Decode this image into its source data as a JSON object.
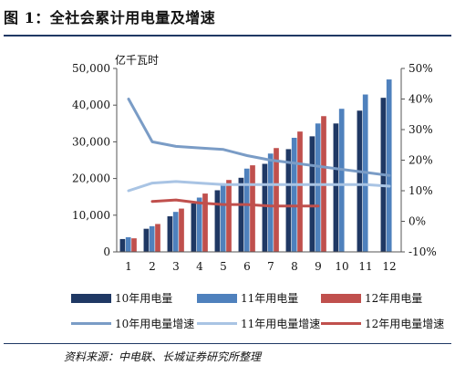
{
  "title": "图 1：全社会累计用电量及增速",
  "source": "资料来源：中电联、长城证券研究所整理",
  "colors": {
    "bar10": "#1f3864",
    "bar11": "#4f81bd",
    "bar12": "#c0504d",
    "line10": "#7a9cc6",
    "line11": "#a9c4e4",
    "line12": "#c0504d"
  },
  "chart_data": {
    "type": "bar",
    "title": "图 1：全社会累计用电量及增速",
    "ylabel": "亿千瓦时",
    "categories": [
      "1",
      "2",
      "3",
      "4",
      "5",
      "6",
      "7",
      "8",
      "9",
      "10",
      "11",
      "12"
    ],
    "y_left": {
      "ylim": [
        0,
        50000
      ],
      "ticks": [
        "0",
        "10,000",
        "20,000",
        "30,000",
        "40,000",
        "50,000"
      ],
      "tick_values": [
        0,
        10000,
        20000,
        30000,
        40000,
        50000
      ]
    },
    "y_right": {
      "ylim": [
        -10,
        50
      ],
      "ticks": [
        "-10%",
        "0%",
        "10%",
        "20%",
        "30%",
        "40%",
        "50%"
      ],
      "tick_values": [
        -10,
        0,
        10,
        20,
        30,
        40,
        50
      ]
    },
    "bar_series": [
      {
        "name": "10年用电量",
        "color": "#1f3864",
        "values": [
          3500,
          6300,
          9700,
          13200,
          16800,
          20200,
          24000,
          28000,
          31500,
          35000,
          38500,
          42000
        ]
      },
      {
        "name": "11年用电量",
        "color": "#4f81bd",
        "values": [
          4000,
          7000,
          10900,
          14800,
          18700,
          22700,
          26800,
          31100,
          35000,
          39000,
          42900,
          47000
        ]
      },
      {
        "name": "12年用电量",
        "color": "#c0504d",
        "values": [
          3700,
          7600,
          11800,
          15900,
          19600,
          23600,
          28300,
          32800,
          37000,
          null,
          null,
          null
        ]
      }
    ],
    "line_series": [
      {
        "name": "10年用电量增速",
        "color": "#7a9cc6",
        "values": [
          40,
          26,
          24.5,
          24,
          23.5,
          21.5,
          20,
          19,
          18,
          17,
          16,
          15
        ]
      },
      {
        "name": "11年用电量增速",
        "color": "#a9c4e4",
        "values": [
          10,
          12.5,
          13,
          12.5,
          12,
          12,
          12,
          12,
          12,
          12,
          12,
          11.5
        ]
      },
      {
        "name": "12年用电量增速",
        "color": "#c0504d",
        "values": [
          null,
          6.5,
          7,
          6,
          5.5,
          5.5,
          5,
          5,
          5,
          null,
          null,
          null
        ]
      }
    ],
    "legend_placement": "bottom",
    "grid": false
  }
}
